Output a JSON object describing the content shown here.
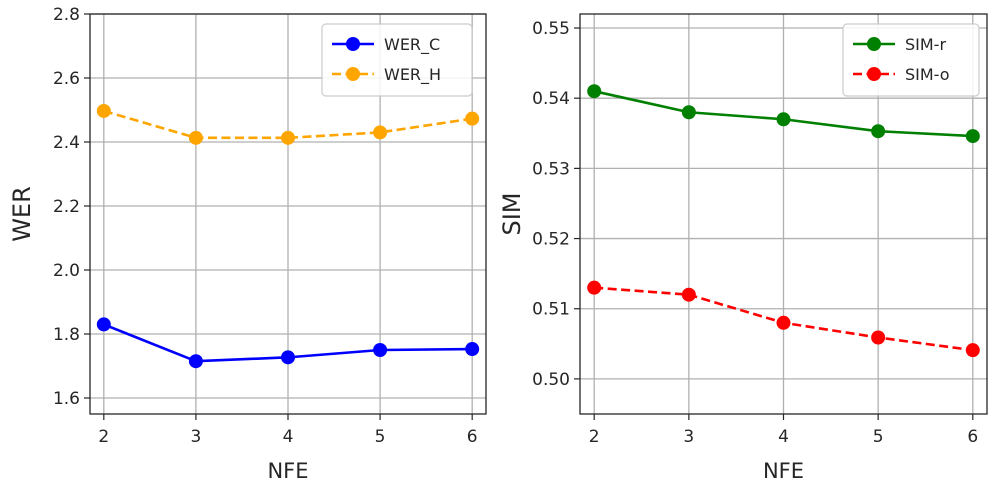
{
  "chart_data": [
    {
      "type": "line",
      "title": "",
      "xlabel": "NFE",
      "ylabel": "WER",
      "x": [
        2,
        3,
        4,
        5,
        6
      ],
      "xlim": [
        1.85,
        6.15
      ],
      "ylim": [
        1.55,
        2.8
      ],
      "xticks": [
        "2",
        "3",
        "4",
        "5",
        "6"
      ],
      "yticks": [
        "1.6",
        "1.8",
        "2.0",
        "2.2",
        "2.4",
        "2.6",
        "2.8"
      ],
      "ytick_values": [
        1.6,
        1.8,
        2.0,
        2.2,
        2.4,
        2.6,
        2.8
      ],
      "grid": true,
      "legend_loc": "top-right",
      "series": [
        {
          "name": "WER_C",
          "values": [
            1.83,
            1.715,
            1.727,
            1.75,
            1.753
          ],
          "color": "#0000ff",
          "style": "solid"
        },
        {
          "name": "WER_H",
          "values": [
            2.497,
            2.413,
            2.413,
            2.43,
            2.473
          ],
          "color": "#ffa500",
          "style": "dashed"
        }
      ]
    },
    {
      "type": "line",
      "title": "",
      "xlabel": "NFE",
      "ylabel": "SIM",
      "x": [
        2,
        3,
        4,
        5,
        6
      ],
      "xlim": [
        1.85,
        6.15
      ],
      "ylim": [
        0.495,
        0.552
      ],
      "xticks": [
        "2",
        "3",
        "4",
        "5",
        "6"
      ],
      "yticks": [
        "0.50",
        "0.51",
        "0.52",
        "0.53",
        "0.54",
        "0.55"
      ],
      "ytick_values": [
        0.5,
        0.51,
        0.52,
        0.53,
        0.54,
        0.55
      ],
      "grid": true,
      "legend_loc": "top-right",
      "series": [
        {
          "name": "SIM-r",
          "values": [
            0.541,
            0.538,
            0.537,
            0.5353,
            0.5346
          ],
          "color": "#008000",
          "style": "solid"
        },
        {
          "name": "SIM-o",
          "values": [
            0.513,
            0.512,
            0.508,
            0.5059,
            0.5041
          ],
          "color": "#ff0000",
          "style": "dashed"
        }
      ]
    }
  ]
}
